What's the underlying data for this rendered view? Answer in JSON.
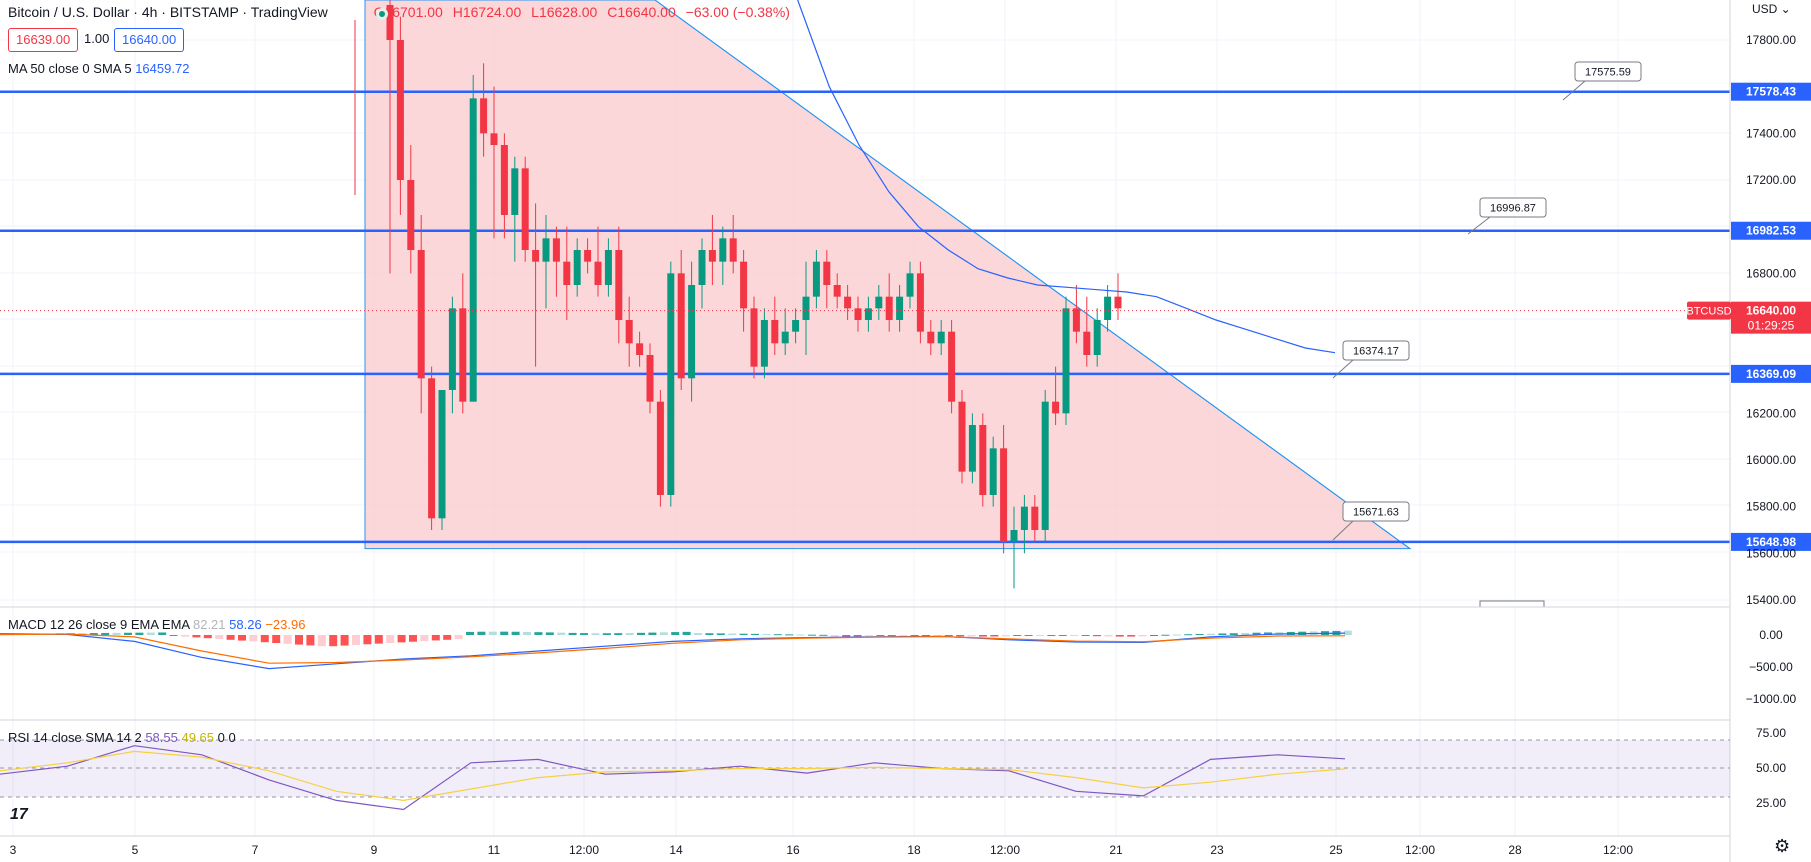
{
  "header": {
    "title": "Bitcoin / U.S. Dollar · 4h · BITSTAMP · TradingView",
    "ohlc": {
      "open": "O16701.00",
      "high": "H16724.00",
      "low": "L16628.00",
      "close": "C16640.00",
      "change": "−63.00 (−0.38%)"
    },
    "bid": "16639.00",
    "spread": "1.00",
    "ask": "16640.00",
    "ma_label": "MA 50 close 0 SMA 5",
    "ma_value": "16459.72"
  },
  "price_axis": {
    "currency": "USD",
    "ticks": [
      "17800.00",
      "17400.00",
      "17200.00",
      "16800.00",
      "16200.00",
      "16000.00",
      "15800.00",
      "15600.00",
      "15400.00"
    ],
    "levels": [
      {
        "label": "17578.43",
        "value": 17578.43
      },
      {
        "label": "16982.53",
        "value": 16982.53
      },
      {
        "label": "16369.09",
        "value": 16369.09
      },
      {
        "label": "15648.98",
        "value": 15648.98
      }
    ],
    "symbol_tag": "BTCUSD",
    "last_price": "16640.00",
    "countdown": "01:29:25"
  },
  "callouts": [
    "17575.59",
    "16996.87",
    "16374.17",
    "15671.63"
  ],
  "macd": {
    "label": "MACD 12 26 close 9 EMA EMA",
    "hist": "82.21",
    "macd": "58.26",
    "signal": "−23.96",
    "ticks": [
      "0.00",
      "−500.00",
      "−1000.00"
    ]
  },
  "rsi": {
    "label": "RSI 14 close SMA 14 2",
    "rsi": "58.55",
    "sma": "49.65",
    "extra1": "0",
    "extra2": "0",
    "ticks": [
      "75.00",
      "50.00",
      "25.00"
    ]
  },
  "time_axis": [
    "3",
    "5",
    "7",
    "9",
    "11",
    "12:00",
    "14",
    "16",
    "18",
    "12:00",
    "21",
    "23",
    "25",
    "12:00",
    "28",
    "12:00"
  ],
  "icons": {
    "logo": "tradingview-logo-icon",
    "settings": "gear-icon",
    "live": "live-dot-icon"
  },
  "colors": {
    "bull": "#089981",
    "bear": "#f23645",
    "levels": "#2962ff",
    "triangle": "#f9c9cc",
    "macd": "#2962ff",
    "signal": "#ff6d00",
    "rsi": "#7e57c2",
    "rsi_ma": "#f5d142"
  },
  "chart_data": {
    "type": "candlestick",
    "timeframe": "4h",
    "candles": [
      [
        17950,
        18100,
        16800,
        17800
      ],
      [
        17800,
        17900,
        17050,
        17200
      ],
      [
        17200,
        17350,
        16800,
        16900
      ],
      [
        16900,
        17050,
        16200,
        16350
      ],
      [
        16350,
        16400,
        15700,
        15750
      ],
      [
        15750,
        16300,
        15700,
        16300
      ],
      [
        16300,
        16700,
        16200,
        16650
      ],
      [
        16650,
        16800,
        16200,
        16250
      ],
      [
        16250,
        17650,
        16250,
        17550
      ],
      [
        17550,
        17700,
        17300,
        17400
      ],
      [
        17400,
        17600,
        16950,
        17350
      ],
      [
        17350,
        17400,
        16950,
        17050
      ],
      [
        17050,
        17300,
        16850,
        17250
      ],
      [
        17250,
        17300,
        16850,
        16900
      ],
      [
        16900,
        17100,
        16400,
        16850
      ],
      [
        16850,
        17050,
        16650,
        16950
      ],
      [
        16950,
        17000,
        16700,
        16850
      ],
      [
        16850,
        17000,
        16600,
        16750
      ],
      [
        16750,
        16950,
        16700,
        16900
      ],
      [
        16900,
        16950,
        16800,
        16850
      ],
      [
        16850,
        17000,
        16700,
        16750
      ],
      [
        16750,
        16950,
        16700,
        16900
      ],
      [
        16900,
        17000,
        16500,
        16600
      ],
      [
        16600,
        16700,
        16400,
        16500
      ],
      [
        16500,
        16550,
        16400,
        16450
      ],
      [
        16450,
        16500,
        16200,
        16250
      ],
      [
        16250,
        16300,
        15800,
        15850
      ],
      [
        15850,
        16850,
        15800,
        16800
      ],
      [
        16800,
        16900,
        16300,
        16350
      ],
      [
        16350,
        16850,
        16250,
        16750
      ],
      [
        16750,
        16950,
        16650,
        16900
      ],
      [
        16900,
        17050,
        16750,
        16850
      ],
      [
        16850,
        17000,
        16750,
        16950
      ],
      [
        16950,
        17050,
        16800,
        16850
      ],
      [
        16850,
        16900,
        16550,
        16650
      ],
      [
        16650,
        16700,
        16350,
        16400
      ],
      [
        16400,
        16650,
        16350,
        16600
      ],
      [
        16600,
        16700,
        16450,
        16500
      ],
      [
        16500,
        16650,
        16450,
        16550
      ],
      [
        16550,
        16650,
        16500,
        16600
      ],
      [
        16600,
        16850,
        16450,
        16700
      ],
      [
        16700,
        16900,
        16650,
        16850
      ],
      [
        16850,
        16900,
        16650,
        16750
      ],
      [
        16750,
        16800,
        16650,
        16700
      ],
      [
        16700,
        16750,
        16600,
        16650
      ],
      [
        16650,
        16700,
        16550,
        16600
      ],
      [
        16600,
        16700,
        16550,
        16650
      ],
      [
        16650,
        16750,
        16600,
        16700
      ],
      [
        16700,
        16800,
        16550,
        16600
      ],
      [
        16600,
        16750,
        16550,
        16700
      ],
      [
        16700,
        16850,
        16650,
        16800
      ],
      [
        16800,
        16850,
        16500,
        16550
      ],
      [
        16550,
        16600,
        16450,
        16500
      ],
      [
        16500,
        16600,
        16450,
        16550
      ],
      [
        16550,
        16600,
        16200,
        16250
      ],
      [
        16250,
        16300,
        15900,
        15950
      ],
      [
        15950,
        16200,
        15900,
        16150
      ],
      [
        16150,
        16200,
        15800,
        15850
      ],
      [
        15850,
        16100,
        15800,
        16050
      ],
      [
        16050,
        16150,
        15600,
        15650
      ],
      [
        15650,
        15800,
        15450,
        15700
      ],
      [
        15700,
        15850,
        15600,
        15800
      ],
      [
        15800,
        15850,
        15650,
        15700
      ],
      [
        15700,
        16300,
        15650,
        16250
      ],
      [
        16250,
        16400,
        16150,
        16200
      ],
      [
        16200,
        16700,
        16150,
        16650
      ],
      [
        16650,
        16750,
        16500,
        16550
      ],
      [
        16550,
        16700,
        16400,
        16450
      ],
      [
        16450,
        16650,
        16400,
        16600
      ],
      [
        16600,
        16750,
        16550,
        16700
      ],
      [
        16700,
        16800,
        16600,
        16650
      ]
    ],
    "ma50": [
      18600,
      18300,
      17950,
      17600,
      17350,
      17150,
      17000,
      16900,
      16820,
      16780,
      16750,
      16740,
      16730,
      16720,
      16700,
      16650,
      16600,
      16560,
      16520,
      16480,
      16459.72
    ],
    "macd_line": [
      40,
      20,
      -200,
      -700,
      -1050,
      -900,
      -750,
      -650,
      -500,
      -350,
      -200,
      -120,
      -80,
      -60,
      -40,
      -150,
      -220,
      -230,
      -60,
      30,
      58.26
    ],
    "signal_line": [
      10,
      30,
      -60,
      -500,
      -880,
      -860,
      -780,
      -680,
      -560,
      -420,
      -260,
      -150,
      -100,
      -70,
      -50,
      -120,
      -190,
      -210,
      -100,
      -30,
      -23.96
    ],
    "rsi_line": [
      45,
      52,
      70,
      62,
      40,
      22,
      14,
      55,
      58,
      45,
      47,
      52,
      46,
      55,
      50,
      48,
      30,
      26,
      58,
      62,
      58.55
    ],
    "rsi_ma": [
      48,
      55,
      65,
      60,
      48,
      30,
      22,
      32,
      42,
      47,
      48,
      50,
      50,
      51,
      50,
      49,
      42,
      33,
      38,
      45,
      49.65
    ],
    "price_range": [
      15300,
      18000
    ]
  }
}
